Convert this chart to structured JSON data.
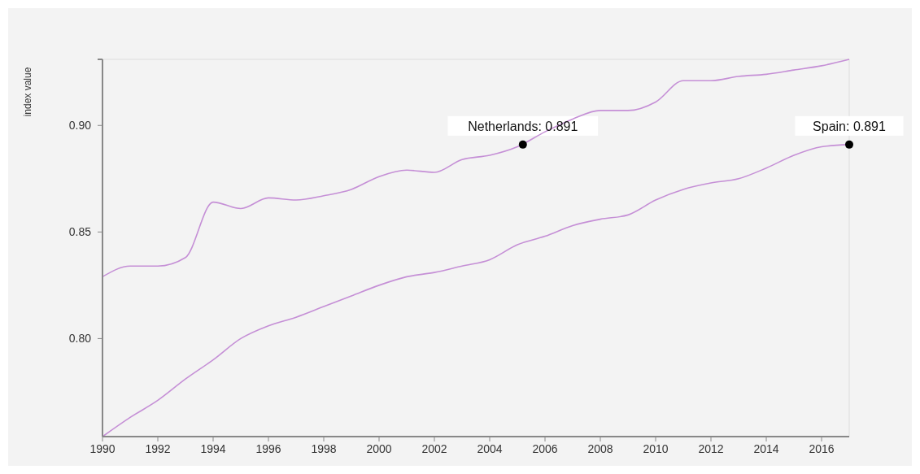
{
  "chart_data": {
    "type": "line",
    "ylabel": "index value",
    "x": [
      1990,
      1991,
      1992,
      1993,
      1994,
      1995,
      1996,
      1997,
      1998,
      1999,
      2000,
      2001,
      2002,
      2003,
      2004,
      2005,
      2006,
      2007,
      2008,
      2009,
      2010,
      2011,
      2012,
      2013,
      2014,
      2015,
      2016,
      2017
    ],
    "series": [
      {
        "color": "#c58fd6",
        "values": [
          0.829,
          0.834,
          0.834,
          0.838,
          0.864,
          0.861,
          0.866,
          0.865,
          0.867,
          0.87,
          0.876,
          0.879,
          0.878,
          0.884,
          0.886,
          0.89,
          0.897,
          0.903,
          0.907,
          0.907,
          0.911,
          0.921,
          0.921,
          0.923,
          0.924,
          0.926,
          0.928,
          0.931
        ]
      },
      {
        "color": "#c58fd6",
        "values": [
          0.754,
          0.763,
          0.771,
          0.781,
          0.79,
          0.8,
          0.806,
          0.81,
          0.815,
          0.82,
          0.825,
          0.829,
          0.831,
          0.834,
          0.837,
          0.844,
          0.848,
          0.853,
          0.856,
          0.858,
          0.865,
          0.87,
          0.873,
          0.875,
          0.88,
          0.886,
          0.89,
          0.891
        ]
      }
    ],
    "xlim": [
      1990,
      2017
    ],
    "xticks": [
      {
        "value": 1990,
        "label": "1990"
      },
      {
        "value": 1992,
        "label": "1992"
      },
      {
        "value": 1994,
        "label": "1994"
      },
      {
        "value": 1996,
        "label": "1996"
      },
      {
        "value": 1998,
        "label": "1998"
      },
      {
        "value": 2000,
        "label": "2000"
      },
      {
        "value": 2002,
        "label": "2002"
      },
      {
        "value": 2004,
        "label": "2004"
      },
      {
        "value": 2006,
        "label": "2006"
      },
      {
        "value": 2008,
        "label": "2008"
      },
      {
        "value": 2010,
        "label": "2010"
      },
      {
        "value": 2012,
        "label": "2012"
      },
      {
        "value": 2014,
        "label": "2014"
      },
      {
        "value": 2016,
        "label": "2016"
      }
    ],
    "ylim": [
      0.754,
      0.931
    ],
    "yticks": [
      {
        "value": 0.8,
        "label": "0.80"
      },
      {
        "value": 0.85,
        "label": "0.85"
      },
      {
        "value": 0.9,
        "label": "0.90"
      }
    ],
    "grid": false,
    "marker": "none",
    "annotations": [
      {
        "text": "Netherlands: 0.891",
        "x": 2005.2,
        "y": 0.891
      },
      {
        "text": "Spain: 0.891",
        "x": 2017,
        "y": 0.891
      }
    ]
  }
}
